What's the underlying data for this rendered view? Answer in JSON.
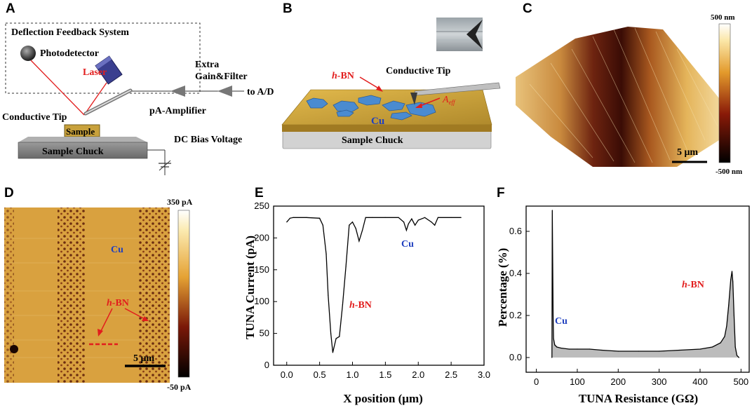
{
  "panel_letters": {
    "a": "A",
    "b": "B",
    "c": "C",
    "d": "D",
    "e": "E",
    "f": "F"
  },
  "colors": {
    "cu_text": "#1f3fbf",
    "hbn_text": "#e21d1d",
    "laser": "#e21d1d",
    "afm_gold": "#d9a640",
    "afm_dark": "#5a1a08"
  },
  "panel_a": {
    "box_title": "Deflection Feedback System",
    "photodetector": "Photodetector",
    "laser": "Laser",
    "extra_gain": "Extra",
    "gain_filter": "Gain&Filter",
    "to_ad": "to A/D",
    "pa_amplifier": "pA-Amplifier",
    "conductive_tip": "Conductive Tip",
    "sample": "Sample",
    "sample_chuck": "Sample Chuck",
    "dc_bias": "DC Bias Voltage"
  },
  "panel_b": {
    "hbn_h": "h",
    "hbn_rest": "-BN",
    "conductive_tip": "Conductive Tip",
    "cu": "Cu",
    "aeff_a": "A",
    "aeff_sub": "eff",
    "sample_chuck": "Sample Chuck"
  },
  "panel_c": {
    "top": "500 nm",
    "bottom": "-500 nm",
    "scale": "5 μm"
  },
  "panel_d": {
    "top": "350 pA",
    "bottom": "-50 pA",
    "cu": "Cu",
    "hbn_h": "h",
    "hbn_rest": "-BN",
    "scale": "5 μm"
  },
  "chart_data": [
    {
      "type": "line",
      "panel": "E",
      "xlabel": "X position (μm)",
      "ylabel": "TUNA Current (pA)",
      "xlim": [
        -0.2,
        3.0
      ],
      "ylim": [
        0,
        250
      ],
      "xticks": [
        "0.0",
        "0.5",
        "1.0",
        "1.5",
        "2.0",
        "2.5",
        "3.0"
      ],
      "xtick_values": [
        0,
        0.5,
        1.0,
        1.5,
        2.0,
        2.5,
        3.0
      ],
      "yticks": [
        "0",
        "50",
        "100",
        "150",
        "200",
        "250"
      ],
      "ytick_values": [
        0,
        50,
        100,
        150,
        200,
        250
      ],
      "annotations": {
        "cu": "Cu",
        "hbn_h": "h",
        "hbn_rest": "-BN"
      },
      "series": [
        {
          "name": "TUNA current",
          "x": [
            0.0,
            0.05,
            0.1,
            0.3,
            0.5,
            0.55,
            0.6,
            0.63,
            0.67,
            0.7,
            0.75,
            0.8,
            0.85,
            0.9,
            0.95,
            1.0,
            1.05,
            1.1,
            1.15,
            1.2,
            1.25,
            1.3,
            1.5,
            1.7,
            1.78,
            1.82,
            1.85,
            1.9,
            1.95,
            2.0,
            2.1,
            2.2,
            2.25,
            2.3,
            2.5,
            2.65
          ],
          "y": [
            225,
            231,
            232,
            232,
            231,
            220,
            175,
            110,
            50,
            20,
            42,
            45,
            95,
            155,
            220,
            225,
            215,
            195,
            212,
            232,
            232,
            232,
            232,
            232,
            225,
            212,
            222,
            230,
            220,
            228,
            232,
            225,
            220,
            232,
            232,
            232
          ]
        }
      ]
    },
    {
      "type": "area",
      "panel": "F",
      "xlabel": "TUNA Resistance (GΩ)",
      "ylabel": "Percentage (%)",
      "xlim": [
        -25,
        520
      ],
      "ylim": [
        -0.07,
        0.72
      ],
      "xticks": [
        "0",
        "100",
        "200",
        "300",
        "400",
        "500"
      ],
      "xtick_values": [
        0,
        100,
        200,
        300,
        400,
        500
      ],
      "yticks": [
        "0.0",
        "0.2",
        "0.4",
        "0.6"
      ],
      "ytick_values": [
        0.0,
        0.2,
        0.4,
        0.6
      ],
      "annotations": {
        "cu": "Cu",
        "hbn_h": "h",
        "hbn_rest": "-BN"
      },
      "series": [
        {
          "name": "Percentage",
          "x": [
            38,
            39,
            40,
            41,
            42,
            45,
            50,
            60,
            80,
            100,
            130,
            160,
            200,
            250,
            300,
            350,
            400,
            430,
            450,
            460,
            465,
            470,
            475,
            478,
            480,
            483,
            486,
            490,
            495
          ],
          "y": [
            0.0,
            0.7,
            0.45,
            0.2,
            0.09,
            0.06,
            0.05,
            0.045,
            0.04,
            0.04,
            0.04,
            0.035,
            0.03,
            0.03,
            0.03,
            0.035,
            0.04,
            0.05,
            0.07,
            0.1,
            0.15,
            0.25,
            0.37,
            0.41,
            0.36,
            0.2,
            0.05,
            0.01,
            0.0
          ]
        }
      ]
    }
  ]
}
